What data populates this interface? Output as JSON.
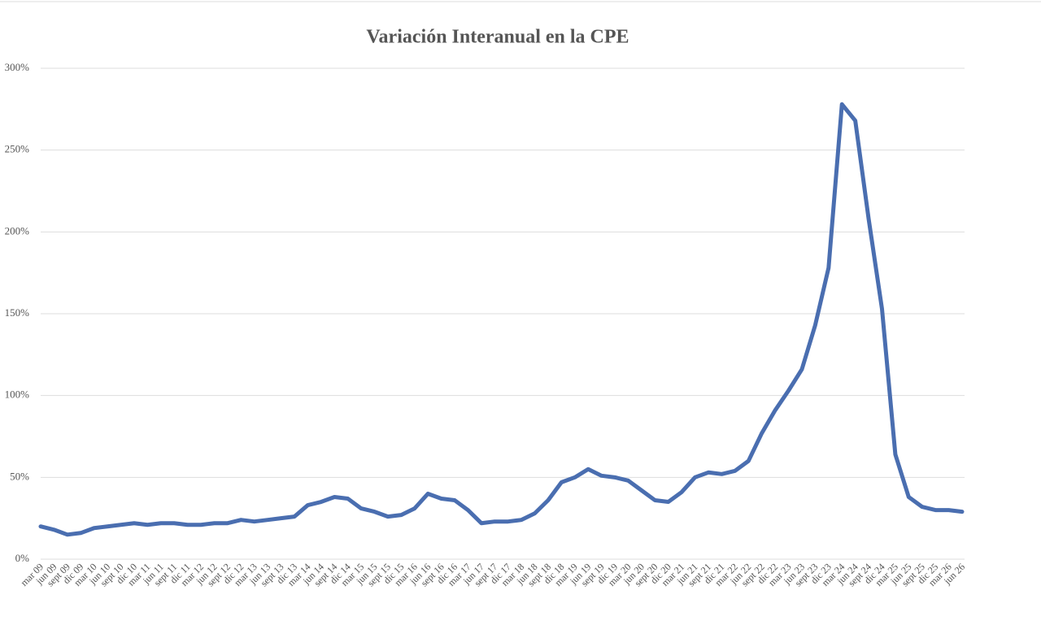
{
  "chart_data": {
    "type": "line",
    "title": "Variación Interanual en la CPE",
    "categories": [
      "mar 09",
      "jun 09",
      "sept 09",
      "dic 09",
      "mar 10",
      "jun 10",
      "sept 10",
      "dic 10",
      "mar 11",
      "jun 11",
      "sept 11",
      "dic 11",
      "mar 12",
      "jun 12",
      "sept 12",
      "dic 12",
      "mar 13",
      "jun 13",
      "sept 13",
      "dic 13",
      "mar 14",
      "jun 14",
      "sept 14",
      "dic 14",
      "mar 15",
      "jun 15",
      "sept 15",
      "dic 15",
      "mar 16",
      "jun 16",
      "sept 16",
      "dic 16",
      "mar 17",
      "jun 17",
      "sept 17",
      "dic 17",
      "mar 18",
      "jun 18",
      "sept 18",
      "dic 18",
      "mar 19",
      "jun 19",
      "sept 19",
      "dic 19",
      "mar 20",
      "jun 20",
      "sept 20",
      "dic 20",
      "mar 21",
      "jun 21",
      "sept 21",
      "dic 21",
      "mar 22",
      "jun 22",
      "sept 22",
      "dic 22",
      "mar 23",
      "jun 23",
      "sept 23",
      "dic 23",
      "mar 24",
      "jun 24",
      "sept 24",
      "dic 24",
      "mar 25",
      "jun 25",
      "sept 25",
      "dic 25",
      "mar 26",
      "jun 26"
    ],
    "series": [
      {
        "name": "Variación Interanual",
        "color": "#4a6eb0",
        "values": [
          20,
          18,
          15,
          16,
          19,
          20,
          21,
          22,
          21,
          22,
          22,
          21,
          21,
          22,
          22,
          24,
          23,
          24,
          25,
          26,
          33,
          35,
          38,
          37,
          31,
          29,
          26,
          27,
          31,
          40,
          37,
          36,
          30,
          22,
          23,
          23,
          24,
          28,
          36,
          47,
          50,
          55,
          51,
          50,
          48,
          42,
          36,
          35,
          41,
          50,
          53,
          52,
          54,
          60,
          77,
          91,
          103,
          116,
          143,
          178,
          278,
          268,
          208,
          153,
          64,
          38,
          32,
          30,
          30,
          29
        ]
      }
    ],
    "ylim": [
      0,
      300
    ],
    "yticks": [
      {
        "value": 0,
        "label": "0%"
      },
      {
        "value": 50,
        "label": "50%"
      },
      {
        "value": 100,
        "label": "100%"
      },
      {
        "value": 150,
        "label": "150%"
      },
      {
        "value": 200,
        "label": "200%"
      },
      {
        "value": 250,
        "label": "250%"
      },
      {
        "value": 300,
        "label": "300%"
      }
    ],
    "grid": true
  }
}
